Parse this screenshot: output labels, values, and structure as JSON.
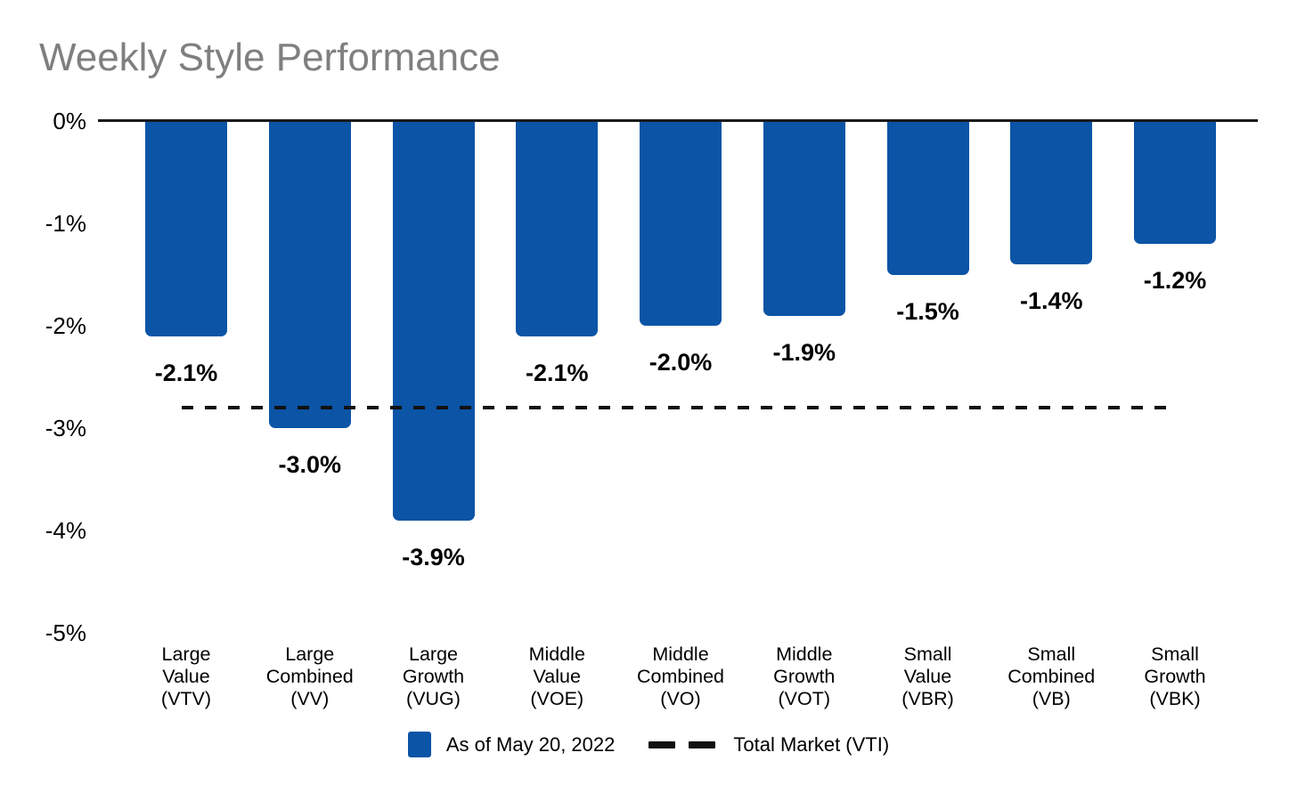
{
  "chart_data": {
    "type": "bar",
    "title": "Weekly Style Performance",
    "categories": [
      "Large Value (VTV)",
      "Large Combined (VV)",
      "Large Growth (VUG)",
      "Middle Value (VOE)",
      "Middle Combined (VO)",
      "Middle Growth (VOT)",
      "Small Value (VBR)",
      "Small Combined (VB)",
      "Small Growth (VBK)"
    ],
    "category_lines": [
      [
        "Large",
        "Value",
        "(VTV)"
      ],
      [
        "Large",
        "Combined",
        "(VV)"
      ],
      [
        "Large",
        "Growth",
        "(VUG)"
      ],
      [
        "Middle",
        "Value",
        "(VOE)"
      ],
      [
        "Middle",
        "Combined",
        "(VO)"
      ],
      [
        "Middle",
        "Growth",
        "(VOT)"
      ],
      [
        "Small",
        "Value",
        "(VBR)"
      ],
      [
        "Small",
        "Combined",
        "(VB)"
      ],
      [
        "Small",
        "Growth",
        "(VBK)"
      ]
    ],
    "values": [
      -2.1,
      -3.0,
      -3.9,
      -2.1,
      -2.0,
      -1.9,
      -1.5,
      -1.4,
      -1.2
    ],
    "bar_labels": [
      "-2.1%",
      "-3.0%",
      "-3.9%",
      "-2.1%",
      "-2.0%",
      "-1.9%",
      "-1.5%",
      "-1.4%",
      "-1.2%"
    ],
    "yticks": [
      {
        "label": "0%",
        "value": 0
      },
      {
        "label": "-1%",
        "value": -1
      },
      {
        "label": "-2%",
        "value": -2
      },
      {
        "label": "-3%",
        "value": -3
      },
      {
        "label": "-4%",
        "value": -4
      },
      {
        "label": "-5%",
        "value": -5
      }
    ],
    "ylim": [
      -5,
      0
    ],
    "grid": false,
    "reference_line": {
      "label": "Total Market (VTI)",
      "value": -2.8,
      "style": "dashed"
    },
    "legend": {
      "position": "bottom-center",
      "series_label": "As of May 20, 2022",
      "reference_label": "Total Market (VTI)"
    },
    "colors": {
      "bar": "#0B54A6",
      "title": "#7F7F7F",
      "text": "#000000",
      "axis": "#1A1A1A",
      "reference": "#111111"
    }
  }
}
